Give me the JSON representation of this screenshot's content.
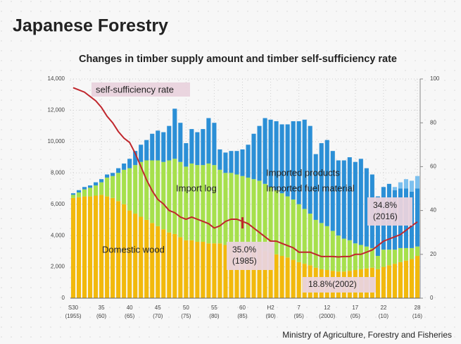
{
  "chart_data": {
    "type": "bar",
    "stacked": true,
    "title": "Japanese Forestry",
    "subtitle": "Changes in timber supply amount and timber self-sufficiency rate",
    "source": "Ministry of Agriculture, Forestry and Fisheries",
    "x": [
      1955,
      1956,
      1957,
      1958,
      1959,
      1960,
      1961,
      1962,
      1963,
      1964,
      1965,
      1966,
      1967,
      1968,
      1969,
      1970,
      1971,
      1972,
      1973,
      1974,
      1975,
      1976,
      1977,
      1978,
      1979,
      1980,
      1981,
      1982,
      1983,
      1984,
      1985,
      1986,
      1987,
      1988,
      1989,
      1990,
      1991,
      1992,
      1993,
      1994,
      1995,
      1996,
      1997,
      1998,
      1999,
      2000,
      2001,
      2002,
      2003,
      2004,
      2005,
      2006,
      2007,
      2008,
      2009,
      2010,
      2011,
      2012,
      2013,
      2014,
      2015,
      2016
    ],
    "categories": [
      "S30",
      null,
      null,
      null,
      null,
      "35",
      null,
      null,
      null,
      null,
      "40",
      null,
      null,
      null,
      null,
      "45",
      null,
      null,
      null,
      null,
      "50",
      null,
      null,
      null,
      null,
      "55",
      null,
      null,
      null,
      null,
      "60",
      null,
      null,
      null,
      null,
      "H2",
      null,
      null,
      null,
      null,
      "7",
      null,
      null,
      null,
      null,
      "12",
      null,
      null,
      null,
      null,
      "17",
      null,
      null,
      null,
      null,
      "22",
      null,
      null,
      null,
      null,
      null,
      "28"
    ],
    "category_sublabels": [
      "(1955)",
      null,
      null,
      null,
      null,
      "(60)",
      null,
      null,
      null,
      null,
      "(65)",
      null,
      null,
      null,
      null,
      "(70)",
      null,
      null,
      null,
      null,
      "(75)",
      null,
      null,
      null,
      null,
      "(80)",
      null,
      null,
      null,
      null,
      "(85)",
      null,
      null,
      null,
      null,
      "(90)",
      null,
      null,
      null,
      null,
      "(95)",
      null,
      null,
      null,
      null,
      "(2000)",
      null,
      null,
      null,
      null,
      "(05)",
      null,
      null,
      null,
      null,
      "(10)",
      null,
      null,
      null,
      null,
      null,
      "(16)"
    ],
    "series": [
      {
        "name": "Domestic wood",
        "color": "#f2b90c",
        "values": [
          6400,
          6450,
          6500,
          6500,
          6550,
          6600,
          6500,
          6400,
          6200,
          6000,
          5600,
          5400,
          5200,
          5000,
          4800,
          4600,
          4400,
          4200,
          4100,
          3900,
          3700,
          3700,
          3600,
          3600,
          3500,
          3500,
          3500,
          3400,
          3400,
          3350,
          3300,
          3250,
          3200,
          3100,
          3000,
          2900,
          2800,
          2700,
          2600,
          2450,
          2300,
          2200,
          2100,
          1950,
          1850,
          1800,
          1750,
          1700,
          1700,
          1750,
          1800,
          1850,
          1900,
          1950,
          1850,
          2000,
          2100,
          2200,
          2300,
          2400,
          2500,
          2700
        ]
      },
      {
        "name": "Import log",
        "color": "#a6e04c",
        "values": [
          200,
          300,
          450,
          550,
          650,
          800,
          1200,
          1400,
          1800,
          2200,
          2700,
          3100,
          3500,
          3800,
          4000,
          4200,
          4300,
          4600,
          4800,
          4800,
          4700,
          4900,
          4900,
          4900,
          5100,
          5000,
          4700,
          4600,
          4600,
          4550,
          4500,
          4450,
          4400,
          4400,
          4300,
          4200,
          4100,
          4000,
          3900,
          3850,
          3700,
          3500,
          3300,
          3050,
          2950,
          2800,
          2550,
          2300,
          2100,
          1950,
          1700,
          1550,
          1400,
          1250,
          850,
          1100,
          1000,
          900,
          900,
          800,
          700,
          600
        ]
      },
      {
        "name": "Imported products",
        "color": "#2b8fd6",
        "values": [
          100,
          150,
          150,
          150,
          200,
          200,
          200,
          200,
          300,
          400,
          600,
          900,
          1100,
          1300,
          1700,
          1900,
          1900,
          2200,
          3200,
          2500,
          1500,
          2200,
          2100,
          2300,
          2900,
          2700,
          1300,
          1300,
          1400,
          1500,
          1700,
          2100,
          2900,
          3500,
          4200,
          4300,
          4400,
          4400,
          4600,
          5000,
          5300,
          5700,
          5600,
          4200,
          5100,
          5500,
          5100,
          4800,
          5000,
          5300,
          5200,
          5500,
          5000,
          4700,
          3800,
          4000,
          4200,
          3800,
          3800,
          3800,
          3600,
          3700
        ]
      },
      {
        "name": "Imported fuel material",
        "color": "#7cc0ee",
        "values": [
          0,
          0,
          0,
          0,
          0,
          0,
          0,
          0,
          0,
          0,
          0,
          0,
          0,
          0,
          0,
          0,
          0,
          0,
          0,
          0,
          0,
          0,
          0,
          0,
          0,
          0,
          0,
          0,
          0,
          0,
          0,
          0,
          0,
          0,
          0,
          0,
          0,
          0,
          0,
          0,
          0,
          0,
          0,
          0,
          0,
          0,
          0,
          0,
          0,
          0,
          0,
          0,
          0,
          0,
          0,
          0,
          0,
          200,
          400,
          600,
          700,
          800
        ]
      },
      {
        "name": "self-sufficiency rate",
        "type": "line",
        "axis": "y2",
        "color": "#c0272d",
        "values": [
          96,
          95,
          94,
          92,
          90,
          87,
          83,
          80,
          76,
          73,
          71,
          66,
          60,
          54,
          49,
          45,
          43,
          40,
          39,
          37,
          36,
          37,
          36,
          35,
          34,
          32,
          33,
          35,
          36,
          36,
          35,
          34,
          32,
          30,
          28,
          26,
          26,
          25,
          24,
          23,
          21,
          21,
          21,
          20,
          19,
          19,
          19,
          18.8,
          19,
          19,
          20,
          20,
          21,
          22,
          24,
          26,
          27,
          28,
          29,
          31,
          33,
          34.8
        ]
      }
    ],
    "annotations": [
      {
        "text": "35.0%",
        "sub": "(1985)",
        "index": 30
      },
      {
        "text": "18.8%(2002)",
        "index": 47
      },
      {
        "text": "34.8%",
        "sub": "(2016)",
        "index": 61
      }
    ],
    "ylim": [
      0,
      14000
    ],
    "yticks": [
      0,
      {
        "value": 2000,
        "label": "2,000"
      },
      {
        "value": 4000,
        "label": "4,000"
      },
      {
        "value": 6000,
        "label": "6,000"
      },
      {
        "value": 8000,
        "label": "8,000"
      },
      {
        "value": 10000,
        "label": "10,000"
      },
      {
        "value": 12000,
        "label": "12,000"
      },
      {
        "value": 14000,
        "label": "14,000"
      }
    ],
    "y2lim": [
      0,
      100
    ],
    "y2ticks": [
      0,
      20,
      40,
      60,
      80,
      100
    ],
    "grid": true
  }
}
